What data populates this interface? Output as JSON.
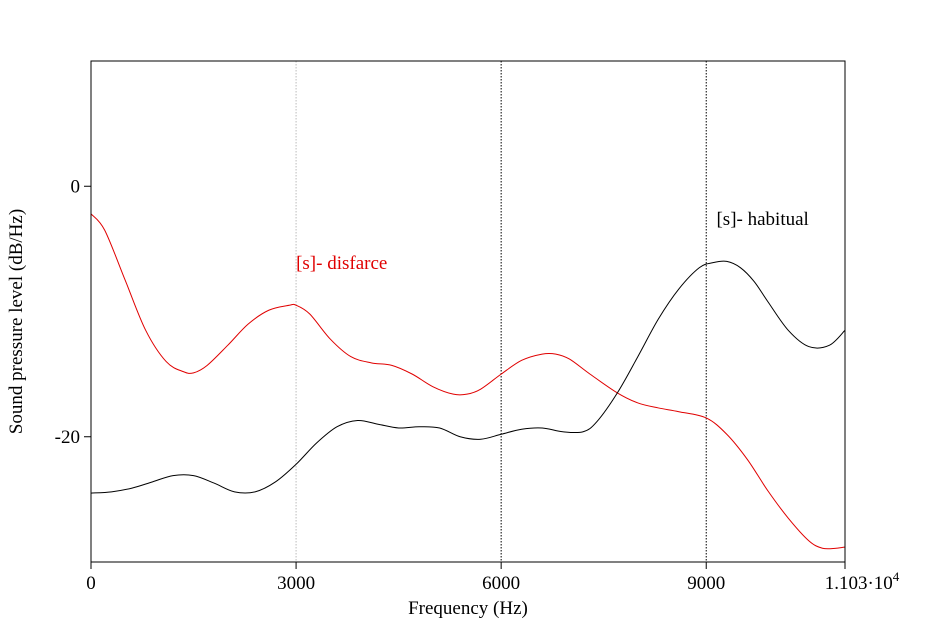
{
  "chart_data": {
    "type": "line",
    "title": "",
    "xlabel": "Frequency (Hz)",
    "ylabel": "Sound pressure level (dB/Hz)",
    "xlim": [
      0,
      11030
    ],
    "ylim": [
      -30,
      10
    ],
    "x_ticks": [
      {
        "value": 0,
        "label": "0"
      },
      {
        "value": 3000,
        "label": "3000"
      },
      {
        "value": 6000,
        "label": "6000"
      },
      {
        "value": 9000,
        "label": "9000"
      },
      {
        "value": 11030,
        "label": "1.103·10",
        "sup": "4"
      }
    ],
    "y_ticks": [
      {
        "value": 0,
        "label": "0"
      },
      {
        "value": -20,
        "label": "-20"
      }
    ],
    "vertical_lines": [
      {
        "x": 3000,
        "color": "#bbbbbb",
        "style": "dotted"
      },
      {
        "x": 6000,
        "color": "#000000",
        "style": "dotted"
      },
      {
        "x": 9000,
        "color": "#000000",
        "style": "dotted"
      }
    ],
    "series": [
      {
        "name": "[s]- disfarce",
        "color": "#e00000",
        "x": [
          0,
          200,
          500,
          800,
          1100,
          1350,
          1500,
          1700,
          2000,
          2300,
          2600,
          2900,
          3000,
          3200,
          3500,
          3800,
          4100,
          4400,
          4700,
          5000,
          5300,
          5500,
          5700,
          6000,
          6300,
          6600,
          6800,
          7000,
          7300,
          7700,
          8000,
          8300,
          8600,
          9000,
          9300,
          9600,
          9900,
          10200,
          10500,
          10700,
          10900,
          11030
        ],
        "y": [
          -2.2,
          -3.5,
          -7.5,
          -11.5,
          -14.0,
          -14.8,
          -14.9,
          -14.3,
          -12.7,
          -11.0,
          -9.9,
          -9.5,
          -9.5,
          -10.2,
          -12.2,
          -13.6,
          -14.1,
          -14.3,
          -15.0,
          -16.0,
          -16.6,
          -16.6,
          -16.2,
          -15.0,
          -13.9,
          -13.4,
          -13.4,
          -13.8,
          -15.0,
          -16.5,
          -17.3,
          -17.7,
          -18.0,
          -18.5,
          -19.8,
          -21.8,
          -24.3,
          -26.5,
          -28.3,
          -28.9,
          -28.9,
          -28.8
        ]
      },
      {
        "name": "[s]- habitual",
        "color": "#000000",
        "x": [
          0,
          300,
          600,
          900,
          1200,
          1500,
          1800,
          2100,
          2400,
          2700,
          3000,
          3300,
          3600,
          3900,
          4200,
          4500,
          4800,
          5100,
          5400,
          5700,
          6000,
          6300,
          6600,
          6900,
          7200,
          7400,
          7700,
          8000,
          8300,
          8600,
          8900,
          9100,
          9300,
          9500,
          9700,
          9900,
          10200,
          10500,
          10800,
          11030
        ],
        "y": [
          -24.5,
          -24.4,
          -24.1,
          -23.6,
          -23.1,
          -23.1,
          -23.7,
          -24.4,
          -24.4,
          -23.6,
          -22.2,
          -20.5,
          -19.2,
          -18.7,
          -19.0,
          -19.3,
          -19.2,
          -19.3,
          -20.0,
          -20.2,
          -19.8,
          -19.4,
          -19.3,
          -19.6,
          -19.6,
          -18.8,
          -16.5,
          -13.6,
          -10.6,
          -8.2,
          -6.5,
          -6.1,
          -6.0,
          -6.5,
          -7.6,
          -9.2,
          -11.5,
          -12.8,
          -12.7,
          -11.5
        ]
      }
    ],
    "annotations": [
      {
        "text": "[s]- disfarce",
        "x": 3000,
        "y": -6.6,
        "color": "#e00000"
      },
      {
        "text": "[s]- habitual",
        "x": 9150,
        "y": -3.1,
        "color": "#000000"
      }
    ],
    "grid": false,
    "legend": "none"
  }
}
